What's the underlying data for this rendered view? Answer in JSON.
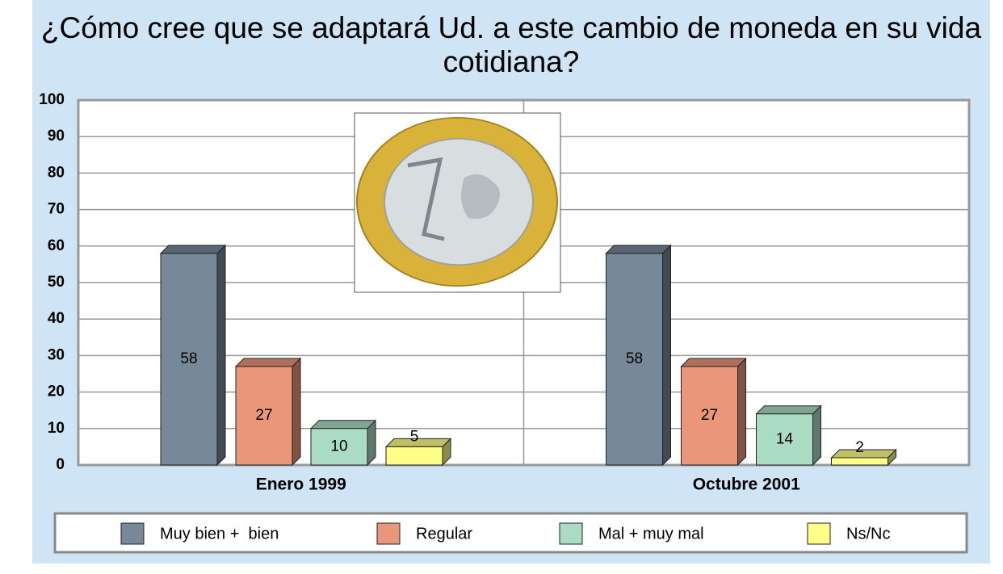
{
  "chart_data": {
    "type": "bar3d",
    "title": "¿Cómo cree que se adaptará Ud. a este cambio de moneda en su vida cotidiana?",
    "categories": [
      "Enero 1999",
      "Octubre 2001"
    ],
    "series": [
      {
        "name": "Muy bien +  bien",
        "color": "#778899",
        "values": [
          58,
          58
        ]
      },
      {
        "name": "Regular",
        "color": "#e9967a",
        "values": [
          27,
          27
        ]
      },
      {
        "name": "Mal + muy mal",
        "color": "#aadcc4",
        "values": [
          10,
          14
        ]
      },
      {
        "name": "Ns/Nc",
        "color": "#ffff88",
        "values": [
          5,
          2
        ]
      }
    ],
    "ylim": [
      0,
      100
    ],
    "yticks": [
      0,
      10,
      20,
      30,
      40,
      50,
      60,
      70,
      80,
      90,
      100
    ],
    "grid": true
  }
}
